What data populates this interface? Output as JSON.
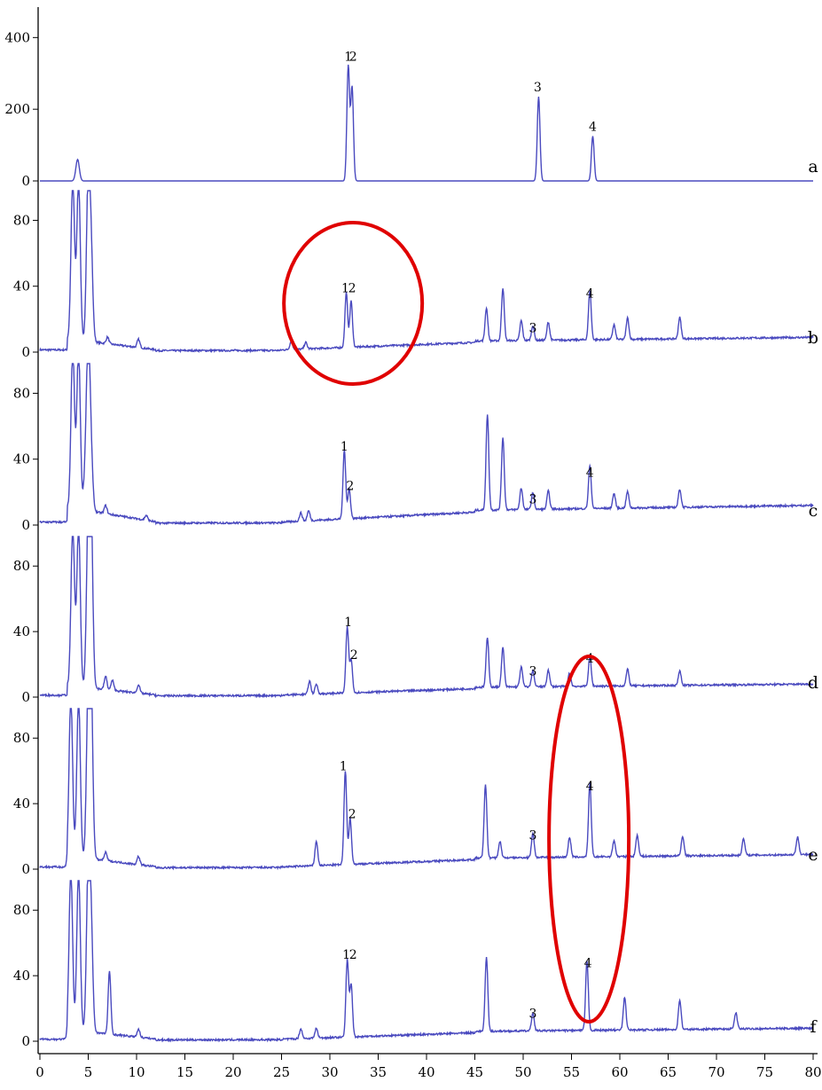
{
  "chart_data": {
    "type": "line",
    "title": "",
    "xlabel": "",
    "ylabel": "",
    "xlim": [
      0,
      80
    ],
    "x_ticks": [
      "0",
      "5",
      "10",
      "15",
      "20",
      "25",
      "30",
      "35",
      "40",
      "45",
      "50",
      "55",
      "60",
      "65",
      "70",
      "75",
      "80"
    ],
    "grid": false,
    "legend": "none",
    "line_color": "#4a4abf",
    "highlight_color": "#e00000",
    "panels": [
      {
        "label": "a",
        "ylim": [
          0,
          480
        ],
        "y_ticks": [
          "0",
          "200",
          "400"
        ],
        "baseline": 0,
        "peaks": [
          [
            3.9,
            60
          ],
          [
            31.9,
            320
          ],
          [
            32.3,
            260
          ],
          [
            51.6,
            235
          ],
          [
            57.2,
            125
          ]
        ],
        "peak_labels": [
          {
            "text": "1",
            "x": 31.9
          },
          {
            "text": "2",
            "x": 32.4
          },
          {
            "text": "3",
            "x": 51.5
          },
          {
            "text": "4",
            "x": 57.2
          }
        ]
      },
      {
        "label": "b",
        "ylim": [
          0,
          98
        ],
        "y_ticks": [
          "0",
          "40",
          "80"
        ],
        "baseline": 9,
        "peaks": [
          [
            3.4,
            98
          ],
          [
            4.0,
            98
          ],
          [
            5.0,
            98
          ],
          [
            5.3,
            50
          ],
          [
            7.0,
            4
          ],
          [
            10.2,
            5
          ],
          [
            26.0,
            5
          ],
          [
            27.5,
            4
          ],
          [
            31.7,
            33
          ],
          [
            32.2,
            28
          ],
          [
            46.2,
            20
          ],
          [
            47.9,
            32
          ],
          [
            49.8,
            12
          ],
          [
            51.0,
            9
          ],
          [
            52.6,
            11
          ],
          [
            56.9,
            30
          ],
          [
            59.4,
            9
          ],
          [
            60.8,
            13
          ],
          [
            66.2,
            13
          ]
        ],
        "peak_labels": [
          {
            "text": "1",
            "x": 31.6
          },
          {
            "text": "2",
            "x": 32.3
          },
          {
            "text": "3",
            "x": 51.0
          },
          {
            "text": "4",
            "x": 56.9
          }
        ]
      },
      {
        "label": "c",
        "ylim": [
          0,
          98
        ],
        "y_ticks": [
          "0",
          "40",
          "80"
        ],
        "baseline": 12,
        "peaks": [
          [
            3.4,
            98
          ],
          [
            4.0,
            98
          ],
          [
            4.7,
            20
          ],
          [
            5.0,
            98
          ],
          [
            5.3,
            30
          ],
          [
            6.8,
            5
          ],
          [
            11.0,
            3
          ],
          [
            27.0,
            5
          ],
          [
            27.8,
            6
          ],
          [
            31.5,
            42
          ],
          [
            32.0,
            18
          ],
          [
            46.3,
            58
          ],
          [
            47.9,
            44
          ],
          [
            49.8,
            13
          ],
          [
            51.0,
            10
          ],
          [
            52.6,
            11
          ],
          [
            56.9,
            26
          ],
          [
            59.4,
            9
          ],
          [
            60.8,
            10
          ],
          [
            66.2,
            11
          ]
        ],
        "peak_labels": [
          {
            "text": "1",
            "x": 31.5
          },
          {
            "text": "2",
            "x": 32.1
          },
          {
            "text": "3",
            "x": 51.0
          },
          {
            "text": "4",
            "x": 56.9
          }
        ]
      },
      {
        "label": "d",
        "ylim": [
          0,
          98
        ],
        "y_ticks": [
          "0",
          "40",
          "80"
        ],
        "baseline": 8,
        "peaks": [
          [
            3.4,
            98
          ],
          [
            4.0,
            98
          ],
          [
            5.0,
            98
          ],
          [
            5.3,
            98
          ],
          [
            6.8,
            8
          ],
          [
            7.5,
            6
          ],
          [
            10.2,
            5
          ],
          [
            27.9,
            8
          ],
          [
            28.6,
            6
          ],
          [
            31.8,
            40
          ],
          [
            32.2,
            20
          ],
          [
            46.3,
            30
          ],
          [
            47.9,
            24
          ],
          [
            49.8,
            12
          ],
          [
            51.0,
            10
          ],
          [
            52.6,
            10
          ],
          [
            54.8,
            8
          ],
          [
            56.9,
            18
          ],
          [
            60.8,
            10
          ],
          [
            66.2,
            9
          ]
        ],
        "peak_labels": [
          {
            "text": "1",
            "x": 31.9
          },
          {
            "text": "2",
            "x": 32.5
          },
          {
            "text": "3",
            "x": 51.0
          },
          {
            "text": "4",
            "x": 56.9
          }
        ]
      },
      {
        "label": "e",
        "ylim": [
          0,
          98
        ],
        "y_ticks": [
          "0",
          "40",
          "80"
        ],
        "baseline": 9,
        "peaks": [
          [
            3.2,
            98
          ],
          [
            4.0,
            98
          ],
          [
            5.0,
            98
          ],
          [
            5.3,
            98
          ],
          [
            6.8,
            5
          ],
          [
            10.2,
            5
          ],
          [
            28.6,
            15
          ],
          [
            31.6,
            57
          ],
          [
            32.1,
            28
          ],
          [
            46.1,
            45
          ],
          [
            47.6,
            10
          ],
          [
            51.0,
            15
          ],
          [
            54.8,
            12
          ],
          [
            56.9,
            45
          ],
          [
            59.4,
            10
          ],
          [
            61.8,
            13
          ],
          [
            66.5,
            12
          ],
          [
            72.8,
            10
          ],
          [
            78.4,
            11
          ]
        ],
        "peak_labels": [
          {
            "text": "1",
            "x": 31.4
          },
          {
            "text": "2",
            "x": 32.3
          },
          {
            "text": "3",
            "x": 51.0
          },
          {
            "text": "4",
            "x": 56.9
          }
        ]
      },
      {
        "label": "f",
        "ylim": [
          0,
          98
        ],
        "y_ticks": [
          "0",
          "40",
          "80"
        ],
        "baseline": 8,
        "peaks": [
          [
            3.2,
            98
          ],
          [
            4.0,
            98
          ],
          [
            5.0,
            98
          ],
          [
            5.3,
            60
          ],
          [
            7.2,
            38
          ],
          [
            10.2,
            5
          ],
          [
            27.0,
            6
          ],
          [
            28.6,
            6
          ],
          [
            31.8,
            47
          ],
          [
            32.2,
            32
          ],
          [
            46.2,
            45
          ],
          [
            51.0,
            11
          ],
          [
            56.6,
            42
          ],
          [
            60.5,
            20
          ],
          [
            66.2,
            18
          ],
          [
            72.0,
            10
          ]
        ],
        "peak_labels": [
          {
            "text": "1",
            "x": 31.7
          },
          {
            "text": "2",
            "x": 32.4
          },
          {
            "text": "3",
            "x": 51.0
          },
          {
            "text": "4",
            "x": 56.7
          }
        ]
      }
    ],
    "annotations": [
      {
        "type": "ellipse",
        "panel": "b",
        "cx_data": 32.2,
        "cy_value": 35,
        "note": "circle around peaks 1-2"
      },
      {
        "type": "ellipse",
        "panel": "e-f",
        "cx_data": 57.0,
        "note": "ellipse around peak 4"
      }
    ]
  }
}
